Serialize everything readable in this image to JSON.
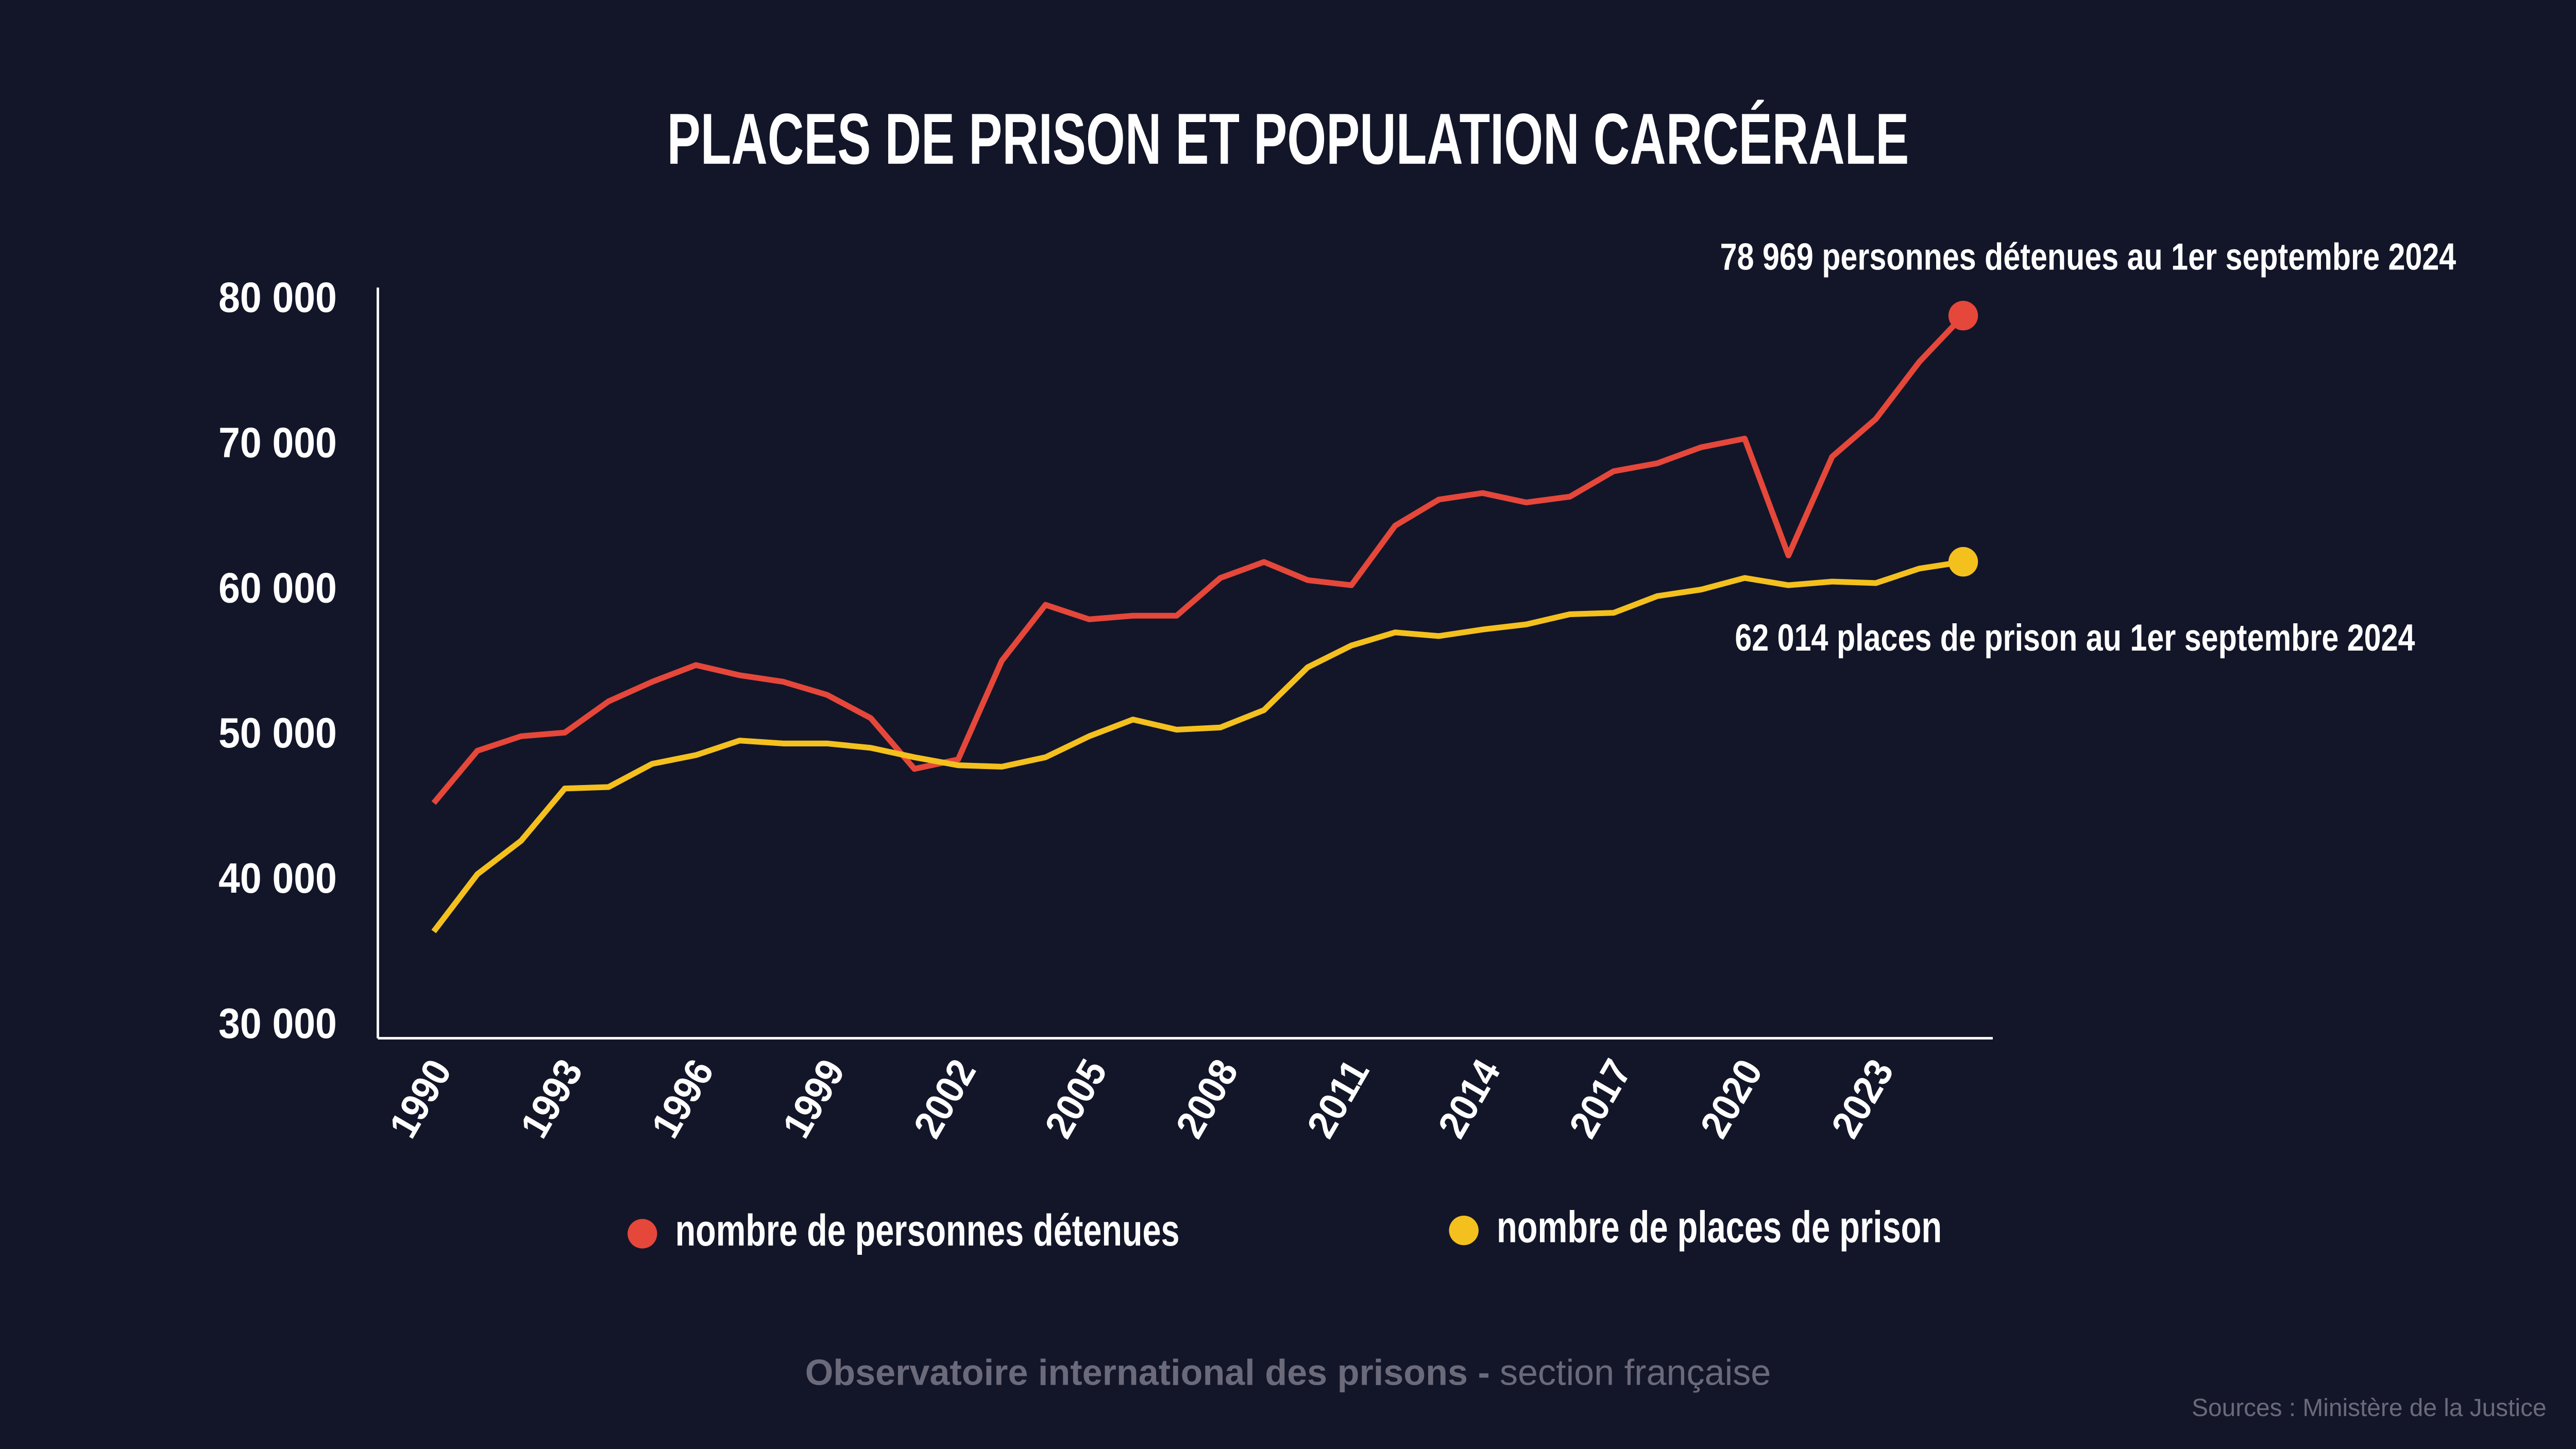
{
  "chart_data": {
    "type": "line",
    "title": "PLACES DE PRISON ET POPULATION CARCÉRALE",
    "categories": [
      "1990",
      null,
      null,
      "1993",
      null,
      null,
      "1996",
      null,
      null,
      "1999",
      null,
      null,
      "2002",
      null,
      null,
      "2005",
      null,
      null,
      "2008",
      null,
      null,
      "2011",
      null,
      null,
      "2014",
      null,
      null,
      "2017",
      null,
      null,
      "2020",
      null,
      null,
      "2023",
      null,
      null
    ],
    "series": [
      {
        "name": "nombre de personnes détenues",
        "color": "#e5473a",
        "values": [
          45400,
          49000,
          50000,
          50250,
          52400,
          53750,
          54900,
          54200,
          53750,
          52850,
          51250,
          47750,
          48400,
          55200,
          59050,
          58050,
          58300,
          58300,
          60900,
          62000,
          60750,
          60400,
          64500,
          66300,
          66750,
          66100,
          66500,
          68250,
          68800,
          69900,
          70500,
          62450,
          69250,
          71850,
          75800,
          78969
        ]
      },
      {
        "name": "nombre de places de prison",
        "color": "#f4c01e",
        "values": [
          36550,
          40500,
          42800,
          46400,
          46500,
          48100,
          48700,
          49700,
          49500,
          49500,
          49200,
          48550,
          48000,
          47900,
          48550,
          50000,
          51150,
          50450,
          50600,
          51800,
          54750,
          56250,
          57150,
          56900,
          57350,
          57700,
          58400,
          58500,
          59650,
          60100,
          60900,
          60400,
          60650,
          60550,
          61550,
          62014
        ]
      }
    ],
    "ylim": [
      29200,
      80900
    ],
    "yticks": [
      {
        "value": 30000,
        "label": "30 000"
      },
      {
        "value": 40000,
        "label": "40 000"
      },
      {
        "value": 50000,
        "label": "50 000"
      },
      {
        "value": 60000,
        "label": "60 000"
      },
      {
        "value": 70000,
        "label": "70 000"
      },
      {
        "value": 80000,
        "label": "80 000"
      }
    ],
    "grid": false,
    "annotations": [
      "78 969 personnes détenues au 1er septembre 2024",
      "62 014 places de prison au 1er septembre 2024"
    ],
    "footer": {
      "bold": "Observatoire international des prisons -",
      "light": "section française"
    },
    "source": "Sources : Ministère de la Justice"
  }
}
